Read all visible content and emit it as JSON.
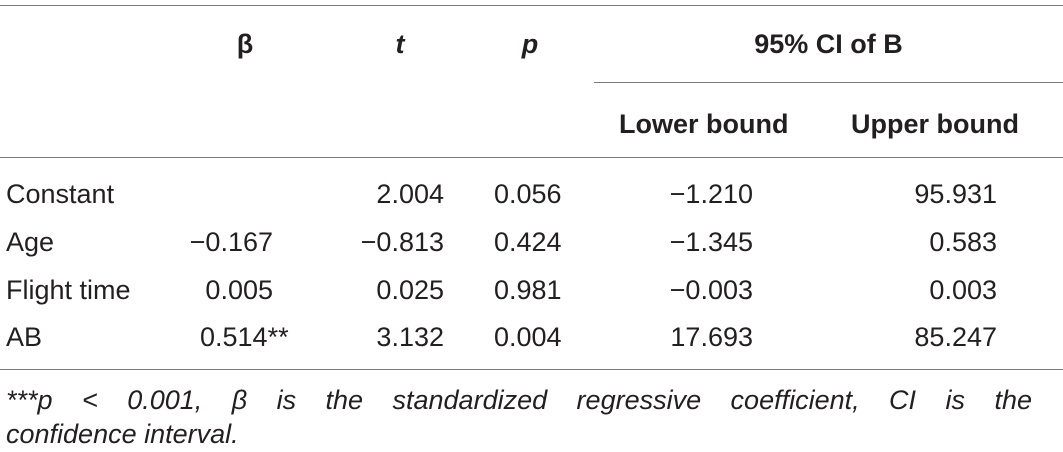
{
  "headers": {
    "beta": "β",
    "t": "t",
    "p": "p",
    "ci_group": "95% CI of B",
    "lower": "Lower bound",
    "upper": "Upper bound"
  },
  "rows": [
    {
      "label": "Constant",
      "beta": "",
      "t": "2.004",
      "p": "0.056",
      "lower": "−1.210",
      "upper": "95.931"
    },
    {
      "label": "Age",
      "beta": "−0.167",
      "t": "−0.813",
      "p": "0.424",
      "lower": "−1.345",
      "upper": "0.583"
    },
    {
      "label": "Flight time",
      "beta": "0.005",
      "t": "0.025",
      "p": "0.981",
      "lower": "−0.003",
      "upper": "0.003"
    },
    {
      "label": "AB",
      "beta": "0.514**",
      "t": "3.132",
      "p": "0.004",
      "lower": "17.693",
      "upper": "85.247"
    }
  ],
  "footnote": {
    "line1": "***p < 0.001, β is the standardized regressive coefficient, CI is the",
    "line2": "confidence interval."
  }
}
